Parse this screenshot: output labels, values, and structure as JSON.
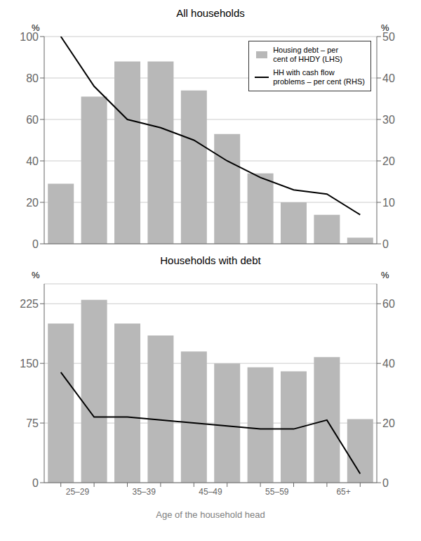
{
  "chart_data": [
    {
      "type": "bar",
      "title": "All households",
      "categories": [
        null,
        null,
        null,
        null,
        null,
        null,
        null,
        null,
        null,
        null
      ],
      "tick_labels": "y",
      "ylabel": "%",
      "y2label": "%",
      "ylim": [
        0,
        100
      ],
      "yticks": [
        0,
        20,
        40,
        60,
        80,
        100
      ],
      "y2lim": [
        0,
        50
      ],
      "y2ticks": [
        0,
        10,
        20,
        30,
        40,
        50
      ],
      "grid": true,
      "legend": "upper right",
      "series": [
        {
          "name": "Housing debt – per\ncent of HHDY (LHS)",
          "type": "bar",
          "color": "#b8b8b8",
          "values": [
            29,
            71,
            88,
            88,
            74,
            53,
            34,
            20,
            14,
            3
          ]
        },
        {
          "name": "HH with cash flow\nproblems – per cent (RHS)",
          "type": "line",
          "color": "#000000",
          "line_style": "solid",
          "axis": "y2",
          "values": [
            50,
            38,
            30,
            28,
            25,
            20,
            16,
            13,
            12,
            7
          ]
        }
      ]
    },
    {
      "type": "bar",
      "title": "Households with debt",
      "xlabel": "Age of the household head",
      "categories": [
        "25–29",
        null,
        "35–39",
        null,
        "45–49",
        null,
        "55–59",
        null,
        "65+",
        null
      ],
      "ylabel": "%",
      "y2label": "%",
      "ylim": [
        0,
        250
      ],
      "yticks": [
        0,
        75,
        150,
        225
      ],
      "y2lim": [
        0,
        66.67
      ],
      "y2ticks": [
        0,
        20,
        40,
        60
      ],
      "grid": true,
      "series": [
        {
          "type": "bar",
          "color": "#b8b8b8",
          "values": [
            200,
            230,
            200,
            185,
            165,
            150,
            145,
            140,
            158,
            80
          ]
        },
        {
          "type": "line",
          "color": "#000000",
          "line_style": "solid",
          "axis": "y2",
          "values": [
            37,
            22,
            22,
            21,
            20,
            19,
            18,
            18,
            21,
            3
          ]
        }
      ]
    }
  ]
}
